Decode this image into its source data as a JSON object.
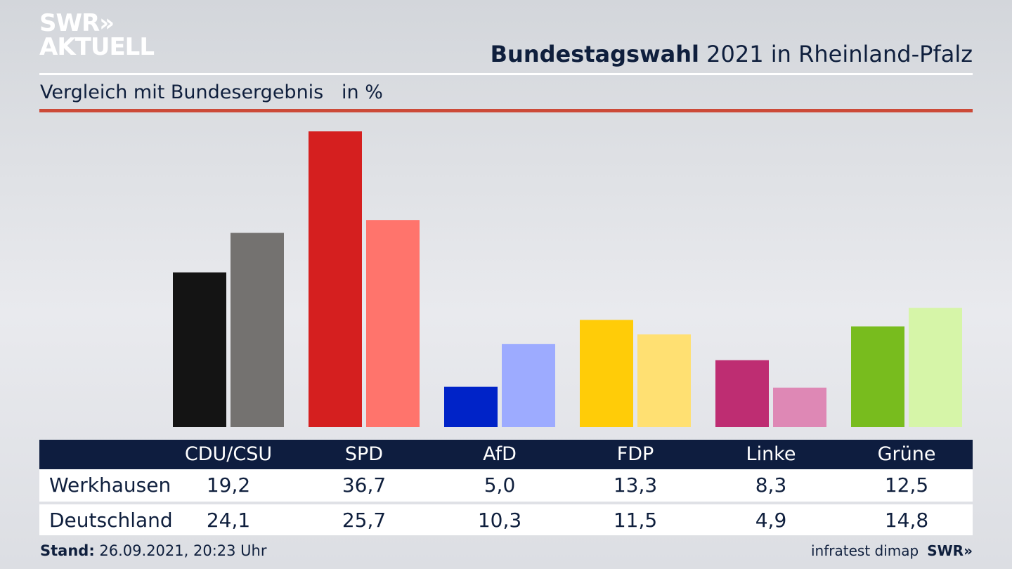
{
  "header": {
    "logo_line1": "SWR»",
    "logo_line2": "AKTUELL",
    "title_bold": "Bundestagswahl",
    "title_rest": " 2021 in Rheinland-Pfalz",
    "subtitle": "Vergleich mit Bundesergebnis   in %"
  },
  "colors": {
    "accent_rule": "#cc4a38",
    "table_header": "#0e1d3f",
    "text": "#0f1f3d"
  },
  "chart_data": {
    "type": "bar",
    "title": "Bundestagswahl 2021 in Rheinland-Pfalz",
    "subtitle": "Vergleich mit Bundesergebnis in %",
    "xlabel": "",
    "ylabel": "in %",
    "ylim": [
      0,
      36.7
    ],
    "grid": false,
    "categories": [
      "CDU/CSU",
      "SPD",
      "AfD",
      "FDP",
      "Linke",
      "Grüne"
    ],
    "series": [
      {
        "name": "Werkhausen",
        "values": [
          19.2,
          36.7,
          5.0,
          13.3,
          8.3,
          12.5
        ],
        "labels": [
          "19,2",
          "36,7",
          "5,0",
          "13,3",
          "8,3",
          "12,5"
        ],
        "colors": [
          "#141414",
          "#d51f1f",
          "#0023c8",
          "#ffcc08",
          "#be2d72",
          "#78bc1e"
        ]
      },
      {
        "name": "Deutschland",
        "values": [
          24.1,
          25.7,
          10.3,
          11.5,
          4.9,
          14.8
        ],
        "labels": [
          "24,1",
          "25,7",
          "10,3",
          "11,5",
          "4,9",
          "14,8"
        ],
        "colors": [
          "#747270",
          "#ff746c",
          "#9dabff",
          "#ffe072",
          "#de88b5",
          "#d6f5a8"
        ]
      }
    ]
  },
  "footer": {
    "stand_label": "Stand:",
    "stand_value": " 26.09.2021, 20:23 Uhr",
    "source": "infratest dimap",
    "brand": "SWR»"
  }
}
